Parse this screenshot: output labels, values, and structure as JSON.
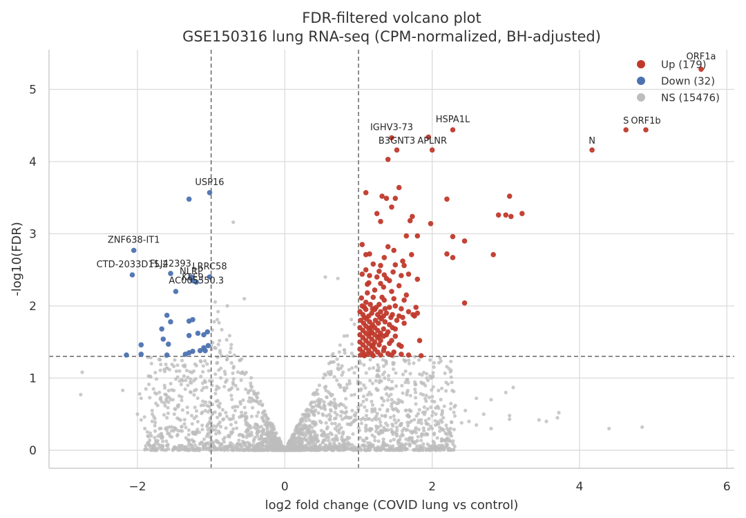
{
  "chart_data": {
    "type": "scatter",
    "title": "FDR-filtered volcano plot",
    "subtitle": "GSE150316 lung RNA-seq (CPM-normalized, BH-adjusted)",
    "xlabel": "log2 fold change (COVID lung vs control)",
    "ylabel": "-log10(FDR)",
    "xlim": [
      -3.2,
      6.1
    ],
    "ylim": [
      -0.25,
      5.55
    ],
    "xticks": [
      -2,
      0,
      2,
      4,
      6
    ],
    "xtick_labels": [
      "−2",
      "0",
      "2",
      "4",
      "6"
    ],
    "yticks": [
      0,
      1,
      2,
      3,
      4,
      5
    ],
    "ytick_labels": [
      "0",
      "1",
      "2",
      "3",
      "4",
      "5"
    ],
    "grid": true,
    "thresholds": {
      "log2fc": [
        -1,
        1
      ],
      "neg_log10_fdr": 1.3
    },
    "colors": {
      "up": "#c0392b",
      "down": "#4c72b0",
      "ns": "#bdbdbd",
      "threshold": "#666666",
      "grid": "#dddddd"
    },
    "legend": {
      "position": "top-right",
      "entries": [
        {
          "label": "Up (179)",
          "group": "up"
        },
        {
          "label": "Down (32)",
          "group": "down"
        },
        {
          "label": "NS (15476)",
          "group": "ns"
        }
      ]
    },
    "series": [
      {
        "name": "Up",
        "count": 179,
        "points": [
          [
            5.65,
            5.28
          ],
          [
            4.63,
            4.44
          ],
          [
            4.9,
            4.44
          ],
          [
            4.17,
            4.16
          ],
          [
            2.28,
            4.44
          ],
          [
            1.95,
            4.34
          ],
          [
            1.52,
            4.16
          ],
          [
            2.0,
            4.16
          ],
          [
            1.4,
            4.03
          ],
          [
            1.45,
            4.33
          ],
          [
            1.1,
            3.57
          ],
          [
            1.38,
            3.49
          ],
          [
            1.5,
            3.49
          ],
          [
            1.45,
            3.37
          ],
          [
            1.55,
            3.64
          ],
          [
            1.32,
            3.52
          ],
          [
            2.2,
            3.48
          ],
          [
            3.05,
            3.52
          ],
          [
            3.22,
            3.28
          ],
          [
            3.07,
            3.24
          ],
          [
            3.0,
            3.26
          ],
          [
            2.9,
            3.26
          ],
          [
            1.25,
            3.28
          ],
          [
            1.3,
            3.17
          ],
          [
            1.7,
            3.18
          ],
          [
            1.73,
            3.24
          ],
          [
            1.98,
            3.14
          ],
          [
            1.65,
            2.97
          ],
          [
            1.8,
            2.97
          ],
          [
            2.28,
            2.96
          ],
          [
            2.44,
            2.9
          ],
          [
            2.83,
            2.71
          ],
          [
            2.2,
            2.72
          ],
          [
            2.28,
            2.67
          ],
          [
            1.05,
            2.85
          ],
          [
            1.1,
            2.71
          ],
          [
            1.15,
            2.72
          ],
          [
            1.4,
            2.82
          ],
          [
            1.48,
            2.77
          ],
          [
            1.35,
            2.67
          ],
          [
            1.3,
            2.56
          ],
          [
            1.5,
            2.57
          ],
          [
            1.47,
            2.47
          ],
          [
            1.2,
            2.58
          ],
          [
            1.62,
            2.56
          ],
          [
            1.1,
            2.5
          ],
          [
            1.05,
            2.44
          ],
          [
            1.15,
            2.42
          ],
          [
            1.25,
            2.4
          ],
          [
            1.35,
            2.43
          ],
          [
            1.42,
            2.35
          ],
          [
            1.58,
            2.42
          ],
          [
            1.68,
            2.44
          ],
          [
            1.8,
            2.37
          ],
          [
            1.12,
            2.3
          ],
          [
            1.22,
            2.22
          ],
          [
            1.3,
            2.31
          ],
          [
            1.55,
            2.28
          ],
          [
            1.65,
            2.15
          ],
          [
            1.45,
            2.2
          ],
          [
            2.44,
            2.04
          ],
          [
            1.04,
            2.11
          ],
          [
            1.1,
            2.05
          ],
          [
            1.2,
            2.12
          ],
          [
            1.28,
            2.02
          ],
          [
            1.35,
            2.08
          ],
          [
            1.5,
            2.0
          ],
          [
            1.62,
            2.08
          ],
          [
            1.42,
            1.98
          ],
          [
            1.78,
            1.98
          ],
          [
            1.02,
            1.92
          ],
          [
            1.06,
            1.88
          ],
          [
            1.1,
            1.95
          ],
          [
            1.14,
            1.86
          ],
          [
            1.18,
            1.9
          ],
          [
            1.22,
            1.95
          ],
          [
            1.26,
            1.88
          ],
          [
            1.3,
            1.92
          ],
          [
            1.34,
            1.86
          ],
          [
            1.38,
            1.9
          ],
          [
            1.46,
            1.88
          ],
          [
            1.55,
            1.86
          ],
          [
            1.76,
            1.86
          ],
          [
            1.8,
            1.9
          ],
          [
            1.03,
            1.8
          ],
          [
            1.07,
            1.76
          ],
          [
            1.11,
            1.82
          ],
          [
            1.15,
            1.78
          ],
          [
            1.19,
            1.74
          ],
          [
            1.23,
            1.8
          ],
          [
            1.27,
            1.76
          ],
          [
            1.31,
            1.82
          ],
          [
            1.36,
            1.78
          ],
          [
            1.42,
            1.74
          ],
          [
            1.52,
            1.8
          ],
          [
            1.62,
            1.76
          ],
          [
            1.02,
            1.7
          ],
          [
            1.06,
            1.66
          ],
          [
            1.1,
            1.72
          ],
          [
            1.14,
            1.68
          ],
          [
            1.18,
            1.64
          ],
          [
            1.22,
            1.7
          ],
          [
            1.26,
            1.66
          ],
          [
            1.3,
            1.62
          ],
          [
            1.34,
            1.68
          ],
          [
            1.4,
            1.64
          ],
          [
            1.5,
            1.68
          ],
          [
            1.02,
            1.6
          ],
          [
            1.06,
            1.56
          ],
          [
            1.1,
            1.62
          ],
          [
            1.14,
            1.58
          ],
          [
            1.18,
            1.54
          ],
          [
            1.22,
            1.6
          ],
          [
            1.26,
            1.56
          ],
          [
            1.3,
            1.52
          ],
          [
            1.34,
            1.58
          ],
          [
            1.45,
            1.52
          ],
          [
            1.02,
            1.5
          ],
          [
            1.06,
            1.46
          ],
          [
            1.1,
            1.52
          ],
          [
            1.14,
            1.48
          ],
          [
            1.18,
            1.44
          ],
          [
            1.22,
            1.5
          ],
          [
            1.28,
            1.46
          ],
          [
            1.35,
            1.42
          ],
          [
            1.42,
            1.48
          ],
          [
            1.55,
            1.46
          ],
          [
            1.58,
            1.44
          ],
          [
            1.83,
            1.52
          ],
          [
            1.02,
            1.4
          ],
          [
            1.06,
            1.36
          ],
          [
            1.1,
            1.42
          ],
          [
            1.14,
            1.38
          ],
          [
            1.18,
            1.34
          ],
          [
            1.22,
            1.4
          ],
          [
            1.26,
            1.36
          ],
          [
            1.3,
            1.32
          ],
          [
            1.34,
            1.38
          ],
          [
            1.4,
            1.34
          ],
          [
            1.48,
            1.36
          ],
          [
            1.58,
            1.33
          ],
          [
            1.68,
            1.32
          ],
          [
            1.03,
            1.32
          ],
          [
            1.08,
            1.31
          ],
          [
            1.12,
            1.33
          ],
          [
            1.2,
            1.31
          ],
          [
            1.45,
            1.32
          ],
          [
            1.85,
            1.31
          ],
          [
            1.05,
            2.0
          ],
          [
            1.16,
            2.02
          ],
          [
            1.24,
            1.98
          ],
          [
            1.32,
            2.12
          ],
          [
            1.12,
            2.18
          ],
          [
            1.48,
            2.1
          ],
          [
            1.38,
            2.38
          ],
          [
            1.6,
            2.62
          ],
          [
            1.72,
            2.71
          ],
          [
            1.14,
            2.32
          ],
          [
            1.28,
            2.48
          ],
          [
            1.34,
            2.26
          ],
          [
            1.08,
            1.98
          ],
          [
            1.19,
            1.96
          ],
          [
            1.36,
            1.96
          ],
          [
            1.58,
            1.96
          ],
          [
            1.68,
            1.92
          ],
          [
            1.08,
            1.84
          ],
          [
            1.29,
            1.84
          ],
          [
            1.44,
            1.84
          ],
          [
            1.6,
            1.84
          ],
          [
            1.16,
            1.7
          ],
          [
            1.46,
            1.7
          ],
          [
            1.28,
            1.58
          ],
          [
            1.38,
            1.6
          ],
          [
            1.2,
            1.46
          ],
          [
            1.5,
            1.58
          ],
          [
            1.16,
            1.62
          ],
          [
            1.74,
            1.88
          ]
        ]
      },
      {
        "name": "Down",
        "count": 32,
        "points": [
          [
            -1.3,
            3.48
          ],
          [
            -1.02,
            3.57
          ],
          [
            -2.05,
            2.77
          ],
          [
            -2.07,
            2.43
          ],
          [
            -1.55,
            2.45
          ],
          [
            -1.27,
            2.4
          ],
          [
            -1.25,
            2.35
          ],
          [
            -1.2,
            2.33
          ],
          [
            -1.02,
            2.4
          ],
          [
            -1.48,
            2.2
          ],
          [
            -1.6,
            1.87
          ],
          [
            -1.55,
            1.78
          ],
          [
            -1.3,
            1.79
          ],
          [
            -1.25,
            1.81
          ],
          [
            -1.67,
            1.68
          ],
          [
            -1.3,
            1.59
          ],
          [
            -1.18,
            1.62
          ],
          [
            -1.1,
            1.6
          ],
          [
            -1.05,
            1.64
          ],
          [
            -1.65,
            1.54
          ],
          [
            -1.58,
            1.47
          ],
          [
            -1.95,
            1.46
          ],
          [
            -1.25,
            1.37
          ],
          [
            -1.15,
            1.38
          ],
          [
            -1.1,
            1.42
          ],
          [
            -1.04,
            1.45
          ],
          [
            -1.35,
            1.33
          ],
          [
            -1.3,
            1.35
          ],
          [
            -1.6,
            1.32
          ],
          [
            -1.95,
            1.33
          ],
          [
            -2.15,
            1.32
          ],
          [
            -1.08,
            1.38
          ]
        ]
      }
    ],
    "ns": {
      "name": "NS",
      "count": 15476,
      "outliers": [
        [
          -2.75,
          1.08
        ],
        [
          -2.77,
          0.77
        ],
        [
          -2.2,
          0.83
        ],
        [
          -1.97,
          0.78
        ],
        [
          -1.95,
          0.72
        ],
        [
          -0.7,
          3.16
        ],
        [
          -0.78,
          2.0
        ],
        [
          -0.55,
          2.1
        ],
        [
          0.55,
          2.4
        ],
        [
          0.72,
          2.38
        ],
        [
          3.72,
          0.52
        ],
        [
          3.7,
          0.45
        ],
        [
          3.55,
          0.4
        ],
        [
          3.45,
          0.42
        ],
        [
          4.4,
          0.3
        ],
        [
          4.85,
          0.32
        ],
        [
          3.05,
          0.43
        ],
        [
          3.05,
          0.48
        ],
        [
          3.1,
          0.87
        ],
        [
          3.0,
          0.8
        ],
        [
          2.8,
          0.7
        ],
        [
          2.6,
          0.72
        ],
        [
          2.3,
          0.6
        ],
        [
          2.45,
          0.55
        ],
        [
          2.7,
          0.5
        ],
        [
          2.5,
          0.4
        ],
        [
          2.15,
          0.45
        ],
        [
          2.05,
          0.5
        ],
        [
          2.4,
          0.38
        ],
        [
          2.6,
          0.35
        ],
        [
          2.8,
          0.3
        ],
        [
          2.25,
          0.3
        ],
        [
          2.0,
          0.3
        ],
        [
          1.85,
          0.42
        ],
        [
          -2.0,
          0.5
        ],
        [
          -1.8,
          0.4
        ],
        [
          -1.9,
          0.3
        ],
        [
          -1.7,
          0.3
        ],
        [
          -1.6,
          0.45
        ],
        [
          -1.5,
          0.5
        ],
        [
          -1.8,
          0.55
        ],
        [
          -1.95,
          0.42
        ],
        [
          -1.75,
          0.65
        ],
        [
          -1.55,
          0.7
        ],
        [
          -1.45,
          0.6
        ]
      ]
    },
    "annotations": [
      {
        "label": "ORF1a",
        "x": 5.65,
        "y": 5.28
      },
      {
        "label": "S",
        "x": 4.63,
        "y": 4.44
      },
      {
        "label": "ORF1b",
        "x": 4.9,
        "y": 4.44
      },
      {
        "label": "N",
        "x": 4.17,
        "y": 4.16
      },
      {
        "label": "HSPA1L",
        "x": 2.28,
        "y": 4.44
      },
      {
        "label": "IGHV3-73",
        "x": 1.45,
        "y": 4.33
      },
      {
        "label": "B3GNT3",
        "x": 1.52,
        "y": 4.16
      },
      {
        "label": "APLNR",
        "x": 2.0,
        "y": 4.16
      },
      {
        "label": "USP16",
        "x": -1.02,
        "y": 3.57
      },
      {
        "label": "ZNF638-IT1",
        "x": -2.05,
        "y": 2.77
      },
      {
        "label": "CTD-2033D15.2",
        "x": -2.07,
        "y": 2.43
      },
      {
        "label": "FLJ42393",
        "x": -1.55,
        "y": 2.45
      },
      {
        "label": "LRRC58",
        "x": -1.02,
        "y": 2.4
      },
      {
        "label": "KLF9",
        "x": -1.25,
        "y": 2.35
      },
      {
        "label": "NLRP",
        "x": -1.27,
        "y": 2.4
      },
      {
        "label": "AC005550.3",
        "x": -1.2,
        "y": 2.33
      }
    ]
  }
}
